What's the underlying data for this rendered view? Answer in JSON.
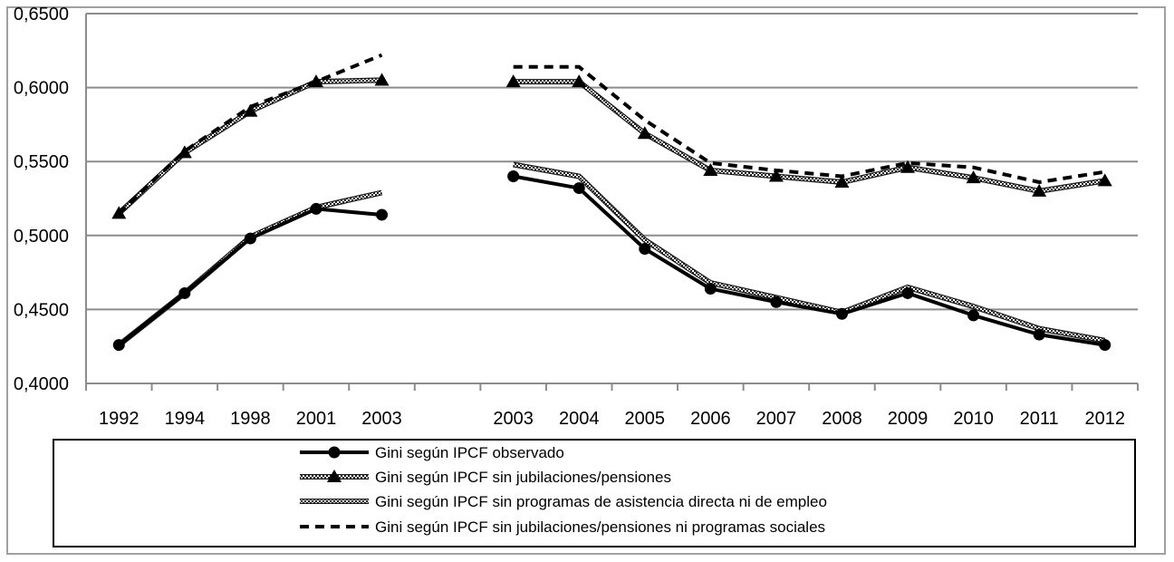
{
  "chart_data": {
    "type": "line",
    "title": "",
    "xlabel": "",
    "ylabel": "",
    "ylim": [
      0.4,
      0.65
    ],
    "y_ticks": [
      "0,4000",
      "0,4500",
      "0,5000",
      "0,5500",
      "0,6000",
      "0,6500"
    ],
    "y_tick_values": [
      0.4,
      0.45,
      0.5,
      0.55,
      0.6,
      0.65
    ],
    "categories": [
      "1992",
      "1994",
      "1998",
      "2001",
      "2003",
      "",
      "2003",
      "2004",
      "2005",
      "2006",
      "2007",
      "2008",
      "2009",
      "2010",
      "2011",
      "2012"
    ],
    "series": [
      {
        "name": "Gini según IPCF observado",
        "style": "solid-circle",
        "segments": [
          [
            0.426,
            0.461,
            0.498,
            0.518,
            0.514
          ],
          [
            0.54,
            0.532,
            0.491,
            0.464,
            0.455,
            0.447,
            0.461,
            0.446,
            0.433,
            0.426
          ]
        ]
      },
      {
        "name": "Gini según IPCF sin jubilaciones/pensiones",
        "style": "hatched-triangle",
        "segments": [
          [
            0.515,
            0.556,
            0.584,
            0.604,
            0.605
          ],
          [
            0.604,
            0.604,
            0.569,
            0.544,
            0.54,
            0.536,
            0.546,
            0.539,
            0.53,
            0.537
          ]
        ]
      },
      {
        "name": "Gini según IPCF sin programas de asistencia directa ni de empleo",
        "style": "hatched",
        "segments": [
          [
            0.426,
            0.461,
            0.499,
            0.519,
            0.529
          ],
          [
            0.548,
            0.54,
            0.497,
            0.468,
            0.458,
            0.448,
            0.465,
            0.452,
            0.437,
            0.429
          ]
        ]
      },
      {
        "name": "Gini según IPCF sin jubilaciones/pensiones ni programas sociales",
        "style": "dashed",
        "segments": [
          [
            0.515,
            0.557,
            0.587,
            0.604,
            0.622
          ],
          [
            0.614,
            0.614,
            0.578,
            0.549,
            0.544,
            0.54,
            0.549,
            0.546,
            0.536,
            0.543
          ]
        ]
      }
    ],
    "legend_position": "bottom"
  }
}
